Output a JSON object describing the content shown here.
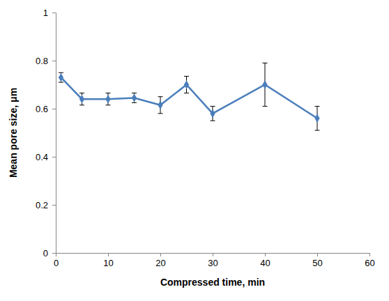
{
  "chart_data": {
    "type": "line",
    "x_label": "Compressed time, min",
    "y_label": "Mean pore size, μm",
    "x": [
      1,
      5,
      10,
      15,
      20,
      25,
      30,
      40,
      50
    ],
    "values": [
      0.73,
      0.64,
      0.64,
      0.645,
      0.615,
      0.7,
      0.58,
      0.7,
      0.56
    ],
    "errors": [
      0.02,
      0.025,
      0.025,
      0.02,
      0.035,
      0.035,
      0.03,
      0.09,
      0.05
    ],
    "color": "#4a7ebb",
    "marker": "diamond",
    "xlim": [
      0,
      60
    ],
    "xticks": [
      0,
      10,
      20,
      30,
      40,
      50,
      60
    ],
    "ylim": [
      0,
      1
    ],
    "yticks": [
      0,
      0.2,
      0.4,
      0.6,
      0.8,
      1
    ],
    "grid": false
  }
}
